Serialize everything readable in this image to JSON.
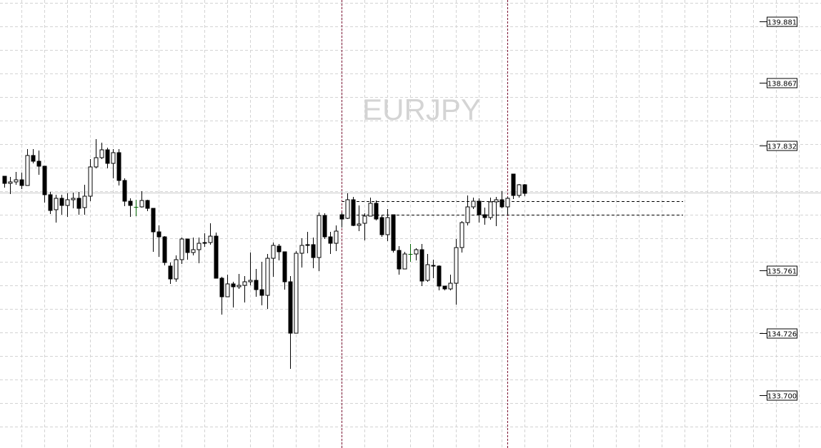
{
  "chart_data": {
    "type": "candlestick",
    "title": "EURJPY",
    "symbol": "EURJPY",
    "ylim": [
      133.45,
      140.2
    ],
    "grid": true,
    "colors": {
      "bear_body": "#000000",
      "bull_body": "#ffffff",
      "outline": "#000000",
      "doji": "#006400",
      "grid": "#d3d3d3",
      "period_separator": "#7a1030",
      "level_line": "#000000",
      "bid_line": "#c8c8c8",
      "watermark": "#d4d4d4"
    },
    "price_labels": [
      "139.881",
      "138.867",
      "137.832",
      "135.761",
      "134.726",
      "133.700"
    ],
    "bid_line": 137.049,
    "horizontal_levels": [
      136.907,
      136.683
    ],
    "period_separators_at_candle": [
      59,
      88
    ],
    "candles_ohlc": [
      [
        137.32,
        137.32,
        137.132,
        137.202
      ],
      [
        137.202,
        137.309,
        137.025,
        137.226
      ],
      [
        137.226,
        137.391,
        137.179,
        137.261
      ],
      [
        137.261,
        137.379,
        137.108,
        137.167
      ],
      [
        137.167,
        137.769,
        137.167,
        137.663
      ],
      [
        137.663,
        137.769,
        137.533,
        137.568
      ],
      [
        137.568,
        137.745,
        137.344,
        137.486
      ],
      [
        137.486,
        137.486,
        136.884,
        137.014
      ],
      [
        137.014,
        137.061,
        136.695,
        136.754
      ],
      [
        136.766,
        137.014,
        136.553,
        136.955
      ],
      [
        136.955,
        137.014,
        136.683,
        136.837
      ],
      [
        136.837,
        137.037,
        136.648,
        136.931
      ],
      [
        136.931,
        137.049,
        136.789,
        136.955
      ],
      [
        136.955,
        137.061,
        136.683,
        136.789
      ],
      [
        136.801,
        137.179,
        136.683,
        136.99
      ],
      [
        136.99,
        137.604,
        136.907,
        137.474
      ],
      [
        137.474,
        137.934,
        137.45,
        137.627
      ],
      [
        137.627,
        137.875,
        137.604,
        137.757
      ],
      [
        137.757,
        137.792,
        137.45,
        137.533
      ],
      [
        137.533,
        137.769,
        137.285,
        137.71
      ],
      [
        137.71,
        137.769,
        137.167,
        137.25
      ],
      [
        137.25,
        137.285,
        136.825,
        136.907
      ],
      [
        136.907,
        136.955,
        136.648,
        136.837
      ],
      [
        136.813,
        136.931,
        136.66,
        136.813
      ],
      [
        136.813,
        137.073,
        136.801,
        136.919
      ],
      [
        136.919,
        136.931,
        136.742,
        136.789
      ],
      [
        136.789,
        136.789,
        136.07,
        136.4
      ],
      [
        136.4,
        136.506,
        135.987,
        136.317
      ],
      [
        136.317,
        136.329,
        135.845,
        135.893
      ],
      [
        135.834,
        135.893,
        135.539,
        135.621
      ],
      [
        135.621,
        136.011,
        135.574,
        135.94
      ],
      [
        135.94,
        136.306,
        135.869,
        136.282
      ],
      [
        136.282,
        136.282,
        135.94,
        136.058
      ],
      [
        136.058,
        136.306,
        136.011,
        136.105
      ],
      [
        136.105,
        136.306,
        135.881,
        136.211
      ],
      [
        136.223,
        136.376,
        136.152,
        136.211
      ],
      [
        136.223,
        136.542,
        136.188,
        136.329
      ],
      [
        136.329,
        136.388,
        135.633,
        135.633
      ],
      [
        135.633,
        135.657,
        135.031,
        135.326
      ],
      [
        135.326,
        135.692,
        135.326,
        135.539
      ],
      [
        135.539,
        135.574,
        135.149,
        135.491
      ],
      [
        135.491,
        135.704,
        135.456,
        135.515
      ],
      [
        135.515,
        135.668,
        135.232,
        135.574
      ],
      [
        135.574,
        136.058,
        135.515,
        135.598
      ],
      [
        135.598,
        135.786,
        135.326,
        135.444
      ],
      [
        135.444,
        135.904,
        135.185,
        135.35
      ],
      [
        135.35,
        136.034,
        135.126,
        135.963
      ],
      [
        135.963,
        136.223,
        135.657,
        136.176
      ],
      [
        136.164,
        136.199,
        135.928,
        136.07
      ],
      [
        136.07,
        136.07,
        135.444,
        135.574
      ],
      [
        135.574,
        135.668,
        134.135,
        134.724
      ],
      [
        134.724,
        136.081,
        134.724,
        136.046
      ],
      [
        136.046,
        136.294,
        135.81,
        136.176
      ],
      [
        136.188,
        136.4,
        136.046,
        136.176
      ],
      [
        136.188,
        136.306,
        135.798,
        135.975
      ],
      [
        135.975,
        136.719,
        135.751,
        136.671
      ],
      [
        136.671,
        136.707,
        136.282,
        136.317
      ],
      [
        136.317,
        136.4,
        136.034,
        136.211
      ],
      [
        136.211,
        136.506,
        136.081,
        136.412
      ],
      [
        136.683,
        136.719,
        136.471,
        136.612
      ],
      [
        136.624,
        137.037,
        136.612,
        136.931
      ],
      [
        136.931,
        136.978,
        136.494,
        136.506
      ],
      [
        136.506,
        136.837,
        136.412,
        136.53
      ],
      [
        136.542,
        136.707,
        136.258,
        136.66
      ],
      [
        136.66,
        136.966,
        136.66,
        136.872
      ],
      [
        136.872,
        136.919,
        136.589,
        136.612
      ],
      [
        136.636,
        136.683,
        136.317,
        136.353
      ],
      [
        136.353,
        136.778,
        136.247,
        136.636
      ],
      [
        136.683,
        136.683,
        136.058,
        136.093
      ],
      [
        136.093,
        136.164,
        135.692,
        135.786
      ],
      [
        135.786,
        136.07,
        135.786,
        136.034
      ],
      [
        136.034,
        136.199,
        135.904,
        136.034
      ],
      [
        136.034,
        136.129,
        135.928,
        136.105
      ],
      [
        136.105,
        136.199,
        135.503,
        135.586
      ],
      [
        135.598,
        136.034,
        135.574,
        135.857
      ],
      [
        135.845,
        135.94,
        135.633,
        135.834
      ],
      [
        135.834,
        135.845,
        135.432,
        135.503
      ],
      [
        135.503,
        135.503,
        135.432,
        135.456
      ],
      [
        135.456,
        135.692,
        135.432,
        135.55
      ],
      [
        135.55,
        136.282,
        135.197,
        136.14
      ],
      [
        136.14,
        136.577,
        136.058,
        136.553
      ],
      [
        136.553,
        137.002,
        136.506,
        136.813
      ],
      [
        136.813,
        136.966,
        136.778,
        136.907
      ],
      [
        136.907,
        136.955,
        136.553,
        136.683
      ],
      [
        136.683,
        136.801,
        136.518,
        136.636
      ],
      [
        136.636,
        136.966,
        136.601,
        136.896
      ],
      [
        136.896,
        136.978,
        136.494,
        136.931
      ],
      [
        136.931,
        137.073,
        136.789,
        136.813
      ],
      [
        136.813,
        136.978,
        136.683,
        136.955
      ],
      [
        137.356,
        137.356,
        136.943,
        137.002
      ],
      [
        137.002,
        137.191,
        136.966,
        137.179
      ],
      [
        137.179,
        137.191,
        136.99,
        137.037
      ]
    ]
  }
}
